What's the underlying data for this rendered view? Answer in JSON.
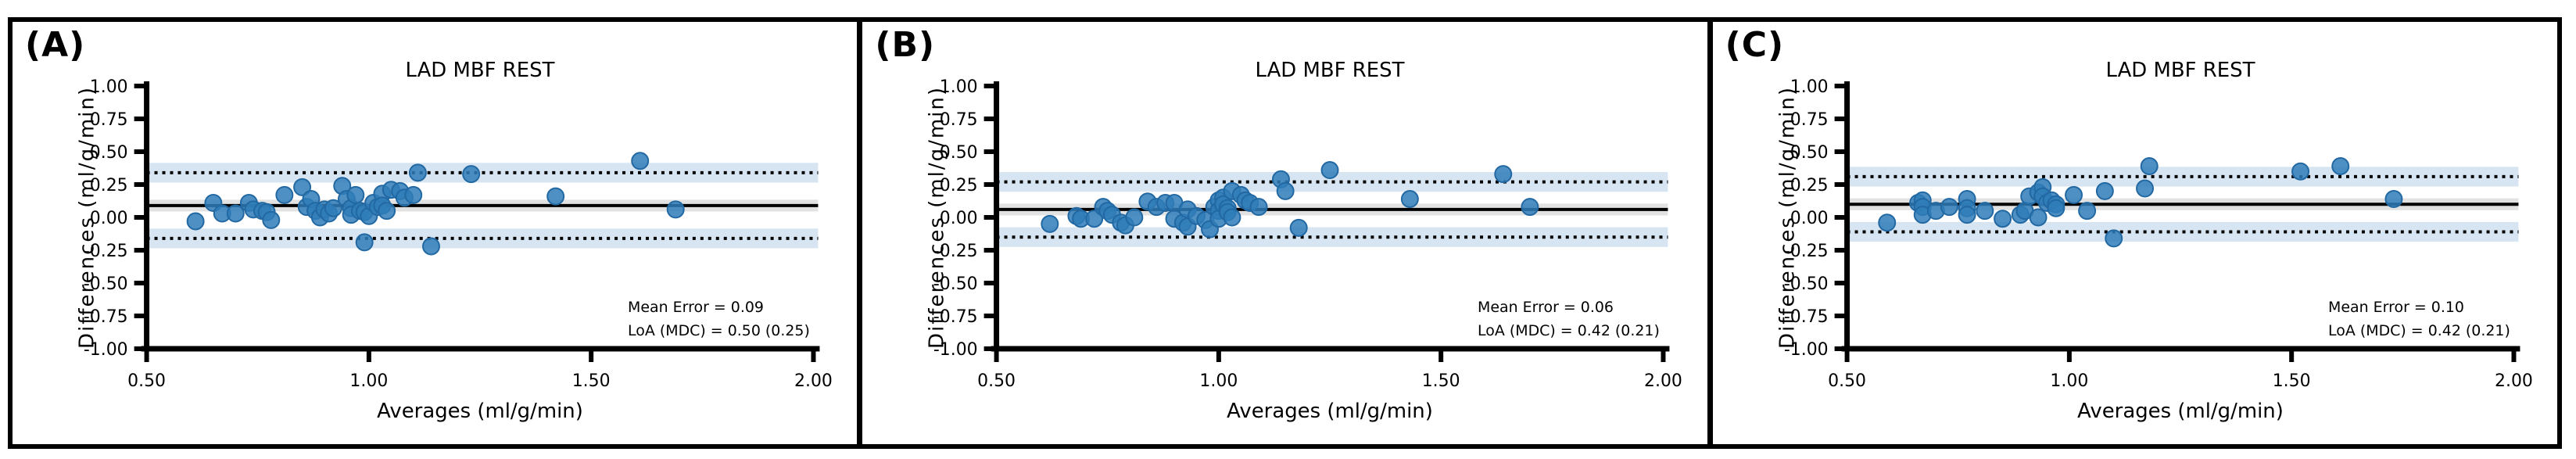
{
  "figure": {
    "background": "#ffffff",
    "border_color": "#000000",
    "colors": {
      "marker_fill": "#2f7cb8",
      "marker_edge": "#2268a2",
      "loa_band": "#d7e5f2",
      "mean_band": "#e2e2e2",
      "line": "#000000"
    }
  },
  "chart_data": [
    {
      "type": "scatter",
      "panel_label": "(A)",
      "title": "LAD MBF REST",
      "xlabel": "Averages (ml/g/min)",
      "ylabel": "Differences (ml/g/min)",
      "xlim": [
        0.5,
        2.0
      ],
      "ylim": [
        -1.0,
        1.0
      ],
      "xticklabels": [
        "0.50",
        "1.00",
        "1.50",
        "2.00"
      ],
      "yticklabels": [
        "1.00",
        "0.75",
        "0.50",
        "0.25",
        "0.00",
        "-0.25",
        "-0.50",
        "-0.75",
        "-1.00"
      ],
      "mean": 0.09,
      "loa_upper": 0.34,
      "loa_lower": -0.16,
      "annotation_line1": "Mean Error = 0.09",
      "annotation_line2": "LoA (MDC) = 0.50 (0.25)",
      "points": [
        [
          0.61,
          -0.03
        ],
        [
          0.65,
          0.11
        ],
        [
          0.67,
          0.03
        ],
        [
          0.7,
          0.03
        ],
        [
          0.73,
          0.11
        ],
        [
          0.74,
          0.06
        ],
        [
          0.76,
          0.05
        ],
        [
          0.77,
          0.04
        ],
        [
          0.78,
          -0.02
        ],
        [
          0.81,
          0.17
        ],
        [
          0.85,
          0.23
        ],
        [
          0.86,
          0.08
        ],
        [
          0.87,
          0.14
        ],
        [
          0.88,
          0.05
        ],
        [
          0.89,
          0.0
        ],
        [
          0.9,
          0.06
        ],
        [
          0.91,
          0.03
        ],
        [
          0.92,
          0.07
        ],
        [
          0.94,
          0.24
        ],
        [
          0.95,
          0.14
        ],
        [
          0.96,
          0.07
        ],
        [
          0.96,
          0.02
        ],
        [
          0.97,
          0.17
        ],
        [
          0.98,
          0.05
        ],
        [
          0.99,
          -0.19
        ],
        [
          0.99,
          0.04
        ],
        [
          1.0,
          0.01
        ],
        [
          1.01,
          0.11
        ],
        [
          1.02,
          0.08
        ],
        [
          1.03,
          0.18
        ],
        [
          1.03,
          0.09
        ],
        [
          1.04,
          0.05
        ],
        [
          1.05,
          0.21
        ],
        [
          1.07,
          0.2
        ],
        [
          1.08,
          0.15
        ],
        [
          1.1,
          0.17
        ],
        [
          1.11,
          0.34
        ],
        [
          1.14,
          -0.22
        ],
        [
          1.23,
          0.33
        ],
        [
          1.42,
          0.16
        ],
        [
          1.61,
          0.43
        ],
        [
          1.69,
          0.06
        ]
      ]
    },
    {
      "type": "scatter",
      "panel_label": "(B)",
      "title": "LAD MBF REST",
      "xlabel": "Averages (ml/g/min)",
      "ylabel": "Differences (ml/g/min)",
      "xlim": [
        0.5,
        2.0
      ],
      "ylim": [
        -1.0,
        1.0
      ],
      "xticklabels": [
        "0.50",
        "1.00",
        "1.50",
        "2.00"
      ],
      "yticklabels": [
        "1.00",
        "0.75",
        "0.50",
        "0.25",
        "0.00",
        "-0.25",
        "-0.50",
        "-0.75",
        "-1.00"
      ],
      "mean": 0.06,
      "loa_upper": 0.27,
      "loa_lower": -0.15,
      "annotation_line1": "Mean Error = 0.06",
      "annotation_line2": "LoA (MDC) = 0.42 (0.21)",
      "points": [
        [
          0.62,
          -0.05
        ],
        [
          0.68,
          0.01
        ],
        [
          0.69,
          -0.01
        ],
        [
          0.72,
          -0.01
        ],
        [
          0.74,
          0.08
        ],
        [
          0.75,
          0.05
        ],
        [
          0.76,
          0.02
        ],
        [
          0.78,
          -0.04
        ],
        [
          0.79,
          -0.06
        ],
        [
          0.81,
          0.0
        ],
        [
          0.84,
          0.12
        ],
        [
          0.86,
          0.08
        ],
        [
          0.88,
          0.11
        ],
        [
          0.9,
          0.11
        ],
        [
          0.9,
          -0.01
        ],
        [
          0.92,
          -0.04
        ],
        [
          0.93,
          -0.07
        ],
        [
          0.93,
          0.06
        ],
        [
          0.95,
          0.01
        ],
        [
          0.97,
          -0.02
        ],
        [
          0.98,
          -0.09
        ],
        [
          0.99,
          0.08
        ],
        [
          1.0,
          0.13
        ],
        [
          1.0,
          0.05
        ],
        [
          1.0,
          -0.01
        ],
        [
          1.01,
          0.15
        ],
        [
          1.01,
          0.1
        ],
        [
          1.02,
          0.07
        ],
        [
          1.02,
          0.04
        ],
        [
          1.03,
          0.2
        ],
        [
          1.03,
          0.0
        ],
        [
          1.05,
          0.17
        ],
        [
          1.06,
          0.13
        ],
        [
          1.07,
          0.11
        ],
        [
          1.09,
          0.08
        ],
        [
          1.14,
          0.29
        ],
        [
          1.15,
          0.2
        ],
        [
          1.18,
          -0.08
        ],
        [
          1.25,
          0.36
        ],
        [
          1.43,
          0.14
        ],
        [
          1.64,
          0.33
        ],
        [
          1.7,
          0.08
        ]
      ]
    },
    {
      "type": "scatter",
      "panel_label": "(C)",
      "title": "LAD MBF REST",
      "xlabel": "Averages (ml/g/min)",
      "ylabel": "Differences (ml/g/min)",
      "xlim": [
        0.5,
        2.0
      ],
      "ylim": [
        -1.0,
        1.0
      ],
      "xticklabels": [
        "0.50",
        "1.00",
        "1.50",
        "2.00"
      ],
      "yticklabels": [
        "1.00",
        "0.75",
        "0.50",
        "0.25",
        "0.00",
        "-0.25",
        "-0.50",
        "-0.75",
        "-1.00"
      ],
      "mean": 0.1,
      "loa_upper": 0.31,
      "loa_lower": -0.11,
      "annotation_line1": "Mean Error = 0.10",
      "annotation_line2": "LoA (MDC) = 0.42 (0.21)",
      "points": [
        [
          0.59,
          -0.04
        ],
        [
          0.66,
          0.11
        ],
        [
          0.67,
          0.13
        ],
        [
          0.67,
          0.08
        ],
        [
          0.67,
          0.02
        ],
        [
          0.7,
          0.05
        ],
        [
          0.73,
          0.08
        ],
        [
          0.77,
          0.14
        ],
        [
          0.77,
          0.07
        ],
        [
          0.77,
          0.02
        ],
        [
          0.81,
          0.05
        ],
        [
          0.85,
          -0.01
        ],
        [
          0.89,
          0.02
        ],
        [
          0.9,
          0.05
        ],
        [
          0.91,
          0.16
        ],
        [
          0.93,
          0.19
        ],
        [
          0.93,
          0.0
        ],
        [
          0.94,
          0.23
        ],
        [
          0.94,
          0.16
        ],
        [
          0.95,
          0.11
        ],
        [
          0.96,
          0.13
        ],
        [
          0.97,
          0.1
        ],
        [
          0.97,
          0.07
        ],
        [
          1.01,
          0.17
        ],
        [
          1.04,
          0.05
        ],
        [
          1.08,
          0.2
        ],
        [
          1.1,
          -0.16
        ],
        [
          1.17,
          0.22
        ],
        [
          1.18,
          0.39
        ],
        [
          1.52,
          0.35
        ],
        [
          1.61,
          0.39
        ],
        [
          1.73,
          0.14
        ]
      ]
    }
  ]
}
